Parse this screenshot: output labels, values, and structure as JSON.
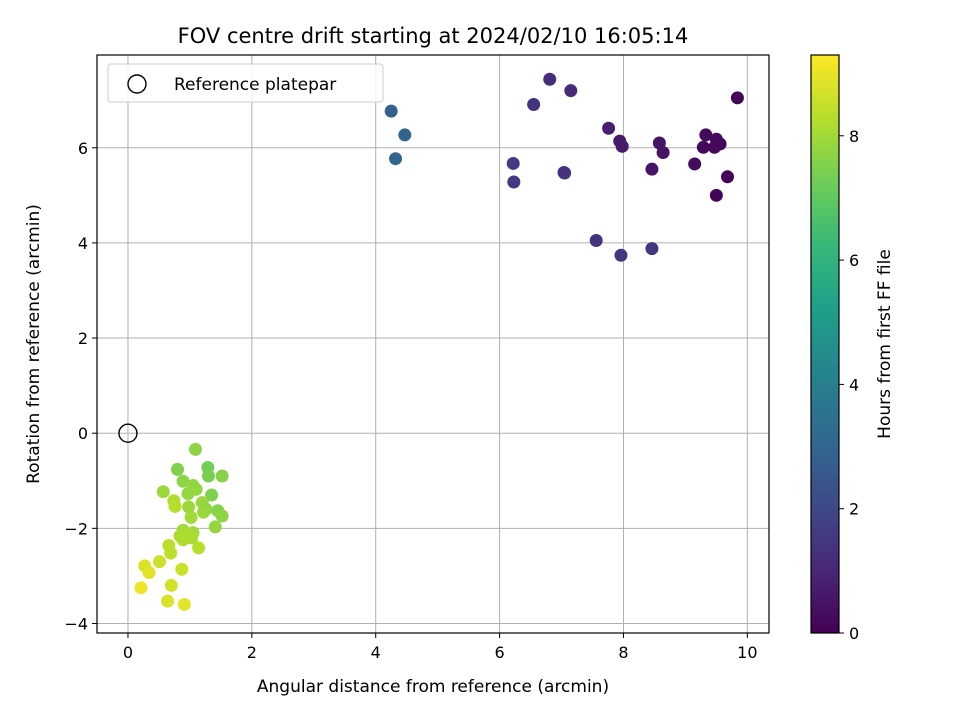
{
  "chart_data": {
    "type": "scatter",
    "title": "FOV centre drift starting at 2024/02/10 16:05:14",
    "xlabel": "Angular distance from reference (arcmin)",
    "ylabel": "Rotation from reference (arcmin)",
    "xlim": [
      -0.5,
      10.35
    ],
    "ylim": [
      -4.2,
      7.95
    ],
    "xticks": [
      0,
      2,
      4,
      6,
      8,
      10
    ],
    "yticks": [
      -4,
      -2,
      0,
      2,
      4,
      6
    ],
    "grid": true,
    "legend": {
      "placement": "top-left",
      "entries": [
        "Reference platepar"
      ]
    },
    "reference_point": {
      "x": 0,
      "y": 0
    },
    "colorbar": {
      "label": "Hours from first FF file",
      "colormap": "viridis",
      "range": [
        0,
        9.3
      ],
      "ticks": [
        0,
        2,
        4,
        6,
        8
      ]
    },
    "points": [
      {
        "x": 9.84,
        "y": 7.05,
        "c": 0.1
      },
      {
        "x": 9.33,
        "y": 6.27,
        "c": 0.2
      },
      {
        "x": 9.5,
        "y": 6.18,
        "c": 0.2
      },
      {
        "x": 9.29,
        "y": 6.01,
        "c": 0.2
      },
      {
        "x": 9.47,
        "y": 6.01,
        "c": 0.15
      },
      {
        "x": 9.56,
        "y": 6.08,
        "c": 0.15
      },
      {
        "x": 9.68,
        "y": 5.39,
        "c": 0.1
      },
      {
        "x": 9.5,
        "y": 5.0,
        "c": 0.1
      },
      {
        "x": 9.15,
        "y": 5.66,
        "c": 0.3
      },
      {
        "x": 8.58,
        "y": 6.1,
        "c": 0.5
      },
      {
        "x": 8.64,
        "y": 5.9,
        "c": 0.5
      },
      {
        "x": 8.46,
        "y": 5.55,
        "c": 0.5
      },
      {
        "x": 7.94,
        "y": 6.14,
        "c": 0.7
      },
      {
        "x": 7.98,
        "y": 6.03,
        "c": 0.7
      },
      {
        "x": 7.76,
        "y": 6.41,
        "c": 0.8
      },
      {
        "x": 7.15,
        "y": 7.2,
        "c": 1.1
      },
      {
        "x": 6.81,
        "y": 7.44,
        "c": 1.2
      },
      {
        "x": 6.55,
        "y": 6.91,
        "c": 1.4
      },
      {
        "x": 7.05,
        "y": 5.47,
        "c": 1.3
      },
      {
        "x": 7.04,
        "y": 5.48,
        "c": 1.3
      },
      {
        "x": 6.22,
        "y": 5.67,
        "c": 1.6
      },
      {
        "x": 6.23,
        "y": 5.28,
        "c": 1.6
      },
      {
        "x": 7.56,
        "y": 4.05,
        "c": 1.4
      },
      {
        "x": 7.96,
        "y": 3.74,
        "c": 1.5
      },
      {
        "x": 8.46,
        "y": 3.88,
        "c": 1.5
      },
      {
        "x": 4.25,
        "y": 6.77,
        "c": 2.8
      },
      {
        "x": 4.47,
        "y": 6.27,
        "c": 3.0
      },
      {
        "x": 4.32,
        "y": 5.77,
        "c": 3.0
      },
      {
        "x": 1.09,
        "y": -0.34,
        "c": 7.7
      },
      {
        "x": 0.8,
        "y": -0.76,
        "c": 7.5
      },
      {
        "x": 1.29,
        "y": -0.72,
        "c": 7.3
      },
      {
        "x": 1.3,
        "y": -0.9,
        "c": 7.4
      },
      {
        "x": 1.52,
        "y": -0.9,
        "c": 7.6
      },
      {
        "x": 0.89,
        "y": -1.01,
        "c": 7.7
      },
      {
        "x": 1.05,
        "y": -1.1,
        "c": 7.8
      },
      {
        "x": 1.1,
        "y": -1.18,
        "c": 7.8
      },
      {
        "x": 0.57,
        "y": -1.23,
        "c": 7.9
      },
      {
        "x": 0.97,
        "y": -1.27,
        "c": 7.8
      },
      {
        "x": 1.35,
        "y": -1.3,
        "c": 7.5
      },
      {
        "x": 0.74,
        "y": -1.42,
        "c": 8.2
      },
      {
        "x": 1.2,
        "y": -1.46,
        "c": 7.9
      },
      {
        "x": 0.76,
        "y": -1.54,
        "c": 8.3
      },
      {
        "x": 0.98,
        "y": -1.55,
        "c": 7.9
      },
      {
        "x": 1.26,
        "y": -1.6,
        "c": 7.7
      },
      {
        "x": 1.45,
        "y": -1.63,
        "c": 7.6
      },
      {
        "x": 1.22,
        "y": -1.66,
        "c": 7.9
      },
      {
        "x": 1.52,
        "y": -1.74,
        "c": 7.7
      },
      {
        "x": 1.02,
        "y": -1.77,
        "c": 8.0
      },
      {
        "x": 1.41,
        "y": -1.97,
        "c": 7.8
      },
      {
        "x": 0.89,
        "y": -2.04,
        "c": 8.0
      },
      {
        "x": 1.05,
        "y": -2.09,
        "c": 8.0
      },
      {
        "x": 0.97,
        "y": -2.12,
        "c": 8.1
      },
      {
        "x": 0.84,
        "y": -2.16,
        "c": 8.1
      },
      {
        "x": 0.89,
        "y": -2.24,
        "c": 8.2
      },
      {
        "x": 0.92,
        "y": -2.21,
        "c": 8.2
      },
      {
        "x": 1.03,
        "y": -2.2,
        "c": 8.1
      },
      {
        "x": 0.66,
        "y": -2.36,
        "c": 8.4
      },
      {
        "x": 1.14,
        "y": -2.41,
        "c": 8.3
      },
      {
        "x": 0.69,
        "y": -2.52,
        "c": 8.4
      },
      {
        "x": 0.51,
        "y": -2.7,
        "c": 8.6
      },
      {
        "x": 0.27,
        "y": -2.79,
        "c": 8.8
      },
      {
        "x": 0.34,
        "y": -2.93,
        "c": 8.9
      },
      {
        "x": 0.87,
        "y": -2.86,
        "c": 8.6
      },
      {
        "x": 0.7,
        "y": -3.2,
        "c": 8.7
      },
      {
        "x": 0.21,
        "y": -3.25,
        "c": 9.1
      },
      {
        "x": 0.64,
        "y": -3.53,
        "c": 8.8
      },
      {
        "x": 0.91,
        "y": -3.6,
        "c": 8.9
      }
    ]
  }
}
